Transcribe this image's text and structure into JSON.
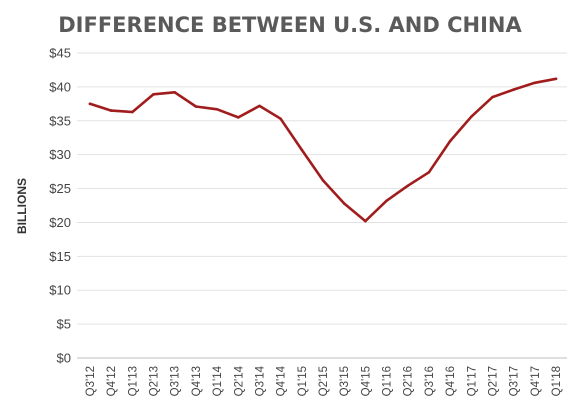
{
  "chart_data": {
    "type": "line",
    "title": "DIFFERENCE BETWEEN U.S. AND CHINA",
    "xlabel": "",
    "ylabel": "BILLIONS",
    "ylim": [
      0,
      45
    ],
    "yticks": [
      0,
      5,
      10,
      15,
      20,
      25,
      30,
      35,
      40,
      45
    ],
    "ytick_labels": [
      "$0",
      "$5",
      "$10",
      "$15",
      "$20",
      "$25",
      "$30",
      "$35",
      "$40",
      "$45"
    ],
    "categories": [
      "Q3'12",
      "Q4'12",
      "Q1'13",
      "Q2'13",
      "Q3'13",
      "Q4'13",
      "Q1'14",
      "Q2'14",
      "Q3'14",
      "Q4'14",
      "Q1'15",
      "Q2'15",
      "Q3'15",
      "Q4'15",
      "Q1'16",
      "Q2'16",
      "Q3'16",
      "Q4'16",
      "Q1'17",
      "Q2'17",
      "Q3'17",
      "Q4'17",
      "Q1'18"
    ],
    "series": [
      {
        "values": [
          37.5,
          36.5,
          36.3,
          38.9,
          39.2,
          37.1,
          36.7,
          35.5,
          37.2,
          35.3,
          30.7,
          26.2,
          22.8,
          20.2,
          23.2,
          25.4,
          27.4,
          32.0,
          35.6,
          38.5,
          39.6,
          40.6,
          41.2
        ],
        "color": "#a11d1d"
      }
    ],
    "grid": true,
    "legend": "none"
  }
}
